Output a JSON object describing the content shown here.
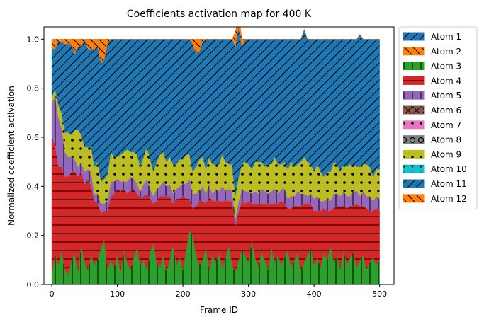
{
  "chart_data": {
    "type": "area",
    "title": "Coefficients activation map for 400 K",
    "xlabel": "Frame ID",
    "ylabel": "Normalized coefficient activation",
    "xlim": [
      -12,
      522
    ],
    "ylim": [
      0,
      1.05
    ],
    "xticks": [
      0,
      100,
      200,
      300,
      400,
      500
    ],
    "xtick_labels": [
      "0",
      "100",
      "200",
      "300",
      "400",
      "500"
    ],
    "yticks": [
      0.0,
      0.2,
      0.4,
      0.6,
      0.8,
      1.0
    ],
    "ytick_labels": [
      "0.0",
      "0.2",
      "0.4",
      "0.6",
      "0.8",
      "1.0"
    ],
    "grid": false,
    "legend_position": "outside-right-top",
    "x": [
      0,
      5,
      10,
      15,
      20,
      25,
      30,
      35,
      40,
      45,
      50,
      55,
      60,
      65,
      70,
      75,
      80,
      85,
      90,
      95,
      100,
      105,
      110,
      115,
      120,
      125,
      130,
      135,
      140,
      145,
      150,
      155,
      160,
      165,
      170,
      175,
      180,
      185,
      190,
      195,
      200,
      205,
      210,
      215,
      220,
      225,
      230,
      235,
      240,
      245,
      250,
      255,
      260,
      265,
      270,
      275,
      280,
      285,
      290,
      295,
      300,
      305,
      310,
      315,
      320,
      325,
      330,
      335,
      340,
      345,
      350,
      355,
      360,
      365,
      370,
      375,
      380,
      385,
      390,
      395,
      400,
      405,
      410,
      415,
      420,
      425,
      430,
      435,
      440,
      445,
      450,
      455,
      460,
      465,
      470,
      475,
      480,
      485,
      490,
      495,
      500
    ],
    "series": [
      {
        "name": "Atom 3",
        "color": "#2ca02c",
        "hatch": "|",
        "values": [
          0.05,
          0.12,
          0.08,
          0.14,
          0.06,
          0.04,
          0.1,
          0.13,
          0.05,
          0.16,
          0.09,
          0.06,
          0.12,
          0.08,
          0.1,
          0.15,
          0.18,
          0.06,
          0.1,
          0.07,
          0.12,
          0.05,
          0.14,
          0.09,
          0.06,
          0.11,
          0.15,
          0.08,
          0.1,
          0.06,
          0.13,
          0.17,
          0.09,
          0.07,
          0.12,
          0.05,
          0.1,
          0.16,
          0.08,
          0.11,
          0.06,
          0.14,
          0.22,
          0.2,
          0.12,
          0.08,
          0.1,
          0.15,
          0.06,
          0.12,
          0.09,
          0.13,
          0.07,
          0.11,
          0.16,
          0.08,
          0.05,
          0.1,
          0.14,
          0.12,
          0.09,
          0.18,
          0.11,
          0.07,
          0.13,
          0.1,
          0.06,
          0.15,
          0.09,
          0.12,
          0.08,
          0.11,
          0.14,
          0.07,
          0.1,
          0.13,
          0.06,
          0.09,
          0.12,
          0.15,
          0.08,
          0.11,
          0.07,
          0.13,
          0.1,
          0.16,
          0.09,
          0.12,
          0.06,
          0.14,
          0.08,
          0.11,
          0.13,
          0.07,
          0.1,
          0.12,
          0.06,
          0.09,
          0.11,
          0.08,
          0.1
        ]
      },
      {
        "name": "Atom 4",
        "color": "#d62728",
        "hatch": "-",
        "values": [
          0.55,
          0.45,
          0.4,
          0.34,
          0.38,
          0.4,
          0.36,
          0.33,
          0.39,
          0.3,
          0.32,
          0.37,
          0.28,
          0.26,
          0.23,
          0.14,
          0.12,
          0.24,
          0.26,
          0.3,
          0.27,
          0.33,
          0.25,
          0.28,
          0.32,
          0.28,
          0.22,
          0.27,
          0.26,
          0.31,
          0.22,
          0.16,
          0.25,
          0.29,
          0.24,
          0.31,
          0.26,
          0.17,
          0.27,
          0.24,
          0.3,
          0.21,
          0.13,
          0.11,
          0.2,
          0.26,
          0.24,
          0.18,
          0.3,
          0.22,
          0.25,
          0.21,
          0.27,
          0.23,
          0.18,
          0.26,
          0.19,
          0.2,
          0.2,
          0.21,
          0.25,
          0.15,
          0.22,
          0.26,
          0.2,
          0.23,
          0.27,
          0.18,
          0.24,
          0.21,
          0.26,
          0.22,
          0.17,
          0.24,
          0.22,
          0.19,
          0.26,
          0.24,
          0.21,
          0.18,
          0.22,
          0.19,
          0.23,
          0.18,
          0.2,
          0.14,
          0.22,
          0.2,
          0.26,
          0.18,
          0.23,
          0.21,
          0.19,
          0.26,
          0.22,
          0.2,
          0.25,
          0.21,
          0.19,
          0.23,
          0.2
        ]
      },
      {
        "name": "Atom 5",
        "color": "#9467bd",
        "hatch": "|",
        "values": [
          0.14,
          0.2,
          0.2,
          0.16,
          0.1,
          0.08,
          0.06,
          0.05,
          0.04,
          0.04,
          0.05,
          0.04,
          0.06,
          0.03,
          0.04,
          0.04,
          0.03,
          0.04,
          0.06,
          0.05,
          0.04,
          0.04,
          0.03,
          0.05,
          0.06,
          0.04,
          0.04,
          0.03,
          0.05,
          0.06,
          0.04,
          0.03,
          0.05,
          0.04,
          0.06,
          0.04,
          0.05,
          0.04,
          0.04,
          0.05,
          0.05,
          0.06,
          0.08,
          0.06,
          0.05,
          0.04,
          0.06,
          0.04,
          0.05,
          0.03,
          0.05,
          0.04,
          0.06,
          0.04,
          0.05,
          0.04,
          0.03,
          0.04,
          0.05,
          0.05,
          0.04,
          0.04,
          0.05,
          0.04,
          0.06,
          0.05,
          0.04,
          0.05,
          0.06,
          0.04,
          0.05,
          0.06,
          0.04,
          0.05,
          0.04,
          0.06,
          0.05,
          0.04,
          0.03,
          0.04,
          0.05,
          0.06,
          0.04,
          0.03,
          0.05,
          0.04,
          0.06,
          0.05,
          0.04,
          0.06,
          0.05,
          0.04,
          0.06,
          0.05,
          0.04,
          0.06,
          0.05,
          0.06,
          0.04,
          0.05,
          0.05
        ]
      },
      {
        "name": "Atom 9",
        "color": "#bcbd22",
        "hatch": ".",
        "values": [
          0.02,
          0.03,
          0.05,
          0.06,
          0.08,
          0.1,
          0.09,
          0.12,
          0.15,
          0.11,
          0.1,
          0.09,
          0.1,
          0.11,
          0.13,
          0.09,
          0.1,
          0.11,
          0.12,
          0.1,
          0.09,
          0.11,
          0.12,
          0.13,
          0.1,
          0.11,
          0.12,
          0.1,
          0.11,
          0.13,
          0.12,
          0.1,
          0.11,
          0.13,
          0.12,
          0.1,
          0.11,
          0.12,
          0.1,
          0.11,
          0.1,
          0.12,
          0.1,
          0.09,
          0.11,
          0.13,
          0.12,
          0.1,
          0.11,
          0.12,
          0.1,
          0.11,
          0.13,
          0.12,
          0.1,
          0.11,
          0.09,
          0.1,
          0.1,
          0.12,
          0.11,
          0.1,
          0.12,
          0.13,
          0.11,
          0.1,
          0.12,
          0.11,
          0.13,
          0.12,
          0.1,
          0.11,
          0.12,
          0.14,
          0.12,
          0.11,
          0.13,
          0.15,
          0.14,
          0.12,
          0.11,
          0.13,
          0.12,
          0.1,
          0.11,
          0.12,
          0.13,
          0.12,
          0.1,
          0.11,
          0.12,
          0.13,
          0.11,
          0.1,
          0.12,
          0.11,
          0.13,
          0.12,
          0.1,
          0.11,
          0.12
        ]
      },
      {
        "name": "Atom 11",
        "color": "#1f77b4",
        "hatch": "/",
        "values": [
          0.2,
          0.16,
          0.26,
          0.29,
          0.36,
          0.36,
          0.37,
          0.31,
          0.34,
          0.36,
          0.44,
          0.4,
          0.4,
          0.48,
          0.47,
          0.48,
          0.49,
          0.53,
          0.46,
          0.48,
          0.48,
          0.47,
          0.46,
          0.45,
          0.46,
          0.46,
          0.47,
          0.52,
          0.48,
          0.44,
          0.49,
          0.54,
          0.5,
          0.47,
          0.46,
          0.5,
          0.48,
          0.51,
          0.51,
          0.49,
          0.49,
          0.47,
          0.47,
          0.52,
          0.46,
          0.44,
          0.47,
          0.53,
          0.48,
          0.51,
          0.51,
          0.51,
          0.47,
          0.5,
          0.51,
          0.51,
          0.61,
          0.61,
          0.48,
          0.5,
          0.51,
          0.53,
          0.5,
          0.5,
          0.5,
          0.52,
          0.51,
          0.51,
          0.48,
          0.51,
          0.51,
          0.5,
          0.53,
          0.5,
          0.52,
          0.51,
          0.5,
          0.52,
          0.5,
          0.51,
          0.54,
          0.51,
          0.54,
          0.56,
          0.54,
          0.54,
          0.5,
          0.51,
          0.54,
          0.51,
          0.52,
          0.51,
          0.51,
          0.52,
          0.54,
          0.51,
          0.51,
          0.52,
          0.56,
          0.53,
          0.53
        ]
      },
      {
        "name": "Atom 12",
        "color": "#ff7f0e",
        "hatch": "\\",
        "values": [
          0.04,
          0.04,
          0.01,
          0.01,
          0.02,
          0.02,
          0.02,
          0.06,
          0.03,
          0.03,
          0.0,
          0.04,
          0.04,
          0.04,
          0.03,
          0.1,
          0.08,
          0.02,
          0.0,
          0.0,
          0.0,
          0.0,
          0.0,
          0.0,
          0.0,
          0.0,
          0.0,
          0.0,
          0.0,
          0.0,
          0.0,
          0.0,
          0.0,
          0.0,
          0.0,
          0.0,
          0.0,
          0.0,
          0.0,
          0.0,
          0.0,
          0.0,
          0.0,
          0.02,
          0.06,
          0.05,
          0.01,
          0.0,
          0.0,
          0.0,
          0.0,
          0.0,
          0.0,
          0.0,
          0.0,
          0.0,
          0.06,
          0.05,
          0.03,
          0.0,
          0.0,
          0.0,
          0.0,
          0.0,
          0.0,
          0.0,
          0.0,
          0.0,
          0.0,
          0.0,
          0.0,
          0.0,
          0.0,
          0.0,
          0.0,
          0.0,
          0.0,
          0.0,
          0.0,
          0.0,
          0.0,
          0.0,
          0.0,
          0.0,
          0.0,
          0.0,
          0.0,
          0.0,
          0.0,
          0.0,
          0.0,
          0.0,
          0.0,
          0.0,
          0.0,
          0.0,
          0.0,
          0.0,
          0.0,
          0.0,
          0.0
        ]
      }
    ],
    "legend": [
      {
        "label": "Atom 1",
        "color": "#1f77b4",
        "hatch": "/"
      },
      {
        "label": "Atom 2",
        "color": "#ff7f0e",
        "hatch": "\\"
      },
      {
        "label": "Atom 3",
        "color": "#2ca02c",
        "hatch": "|"
      },
      {
        "label": "Atom 4",
        "color": "#d62728",
        "hatch": "-"
      },
      {
        "label": "Atom 5",
        "color": "#9467bd",
        "hatch": "|"
      },
      {
        "label": "Atom 6",
        "color": "#8c564b",
        "hatch": "x"
      },
      {
        "label": "Atom 7",
        "color": "#e377c2",
        "hatch": "."
      },
      {
        "label": "Atom 8",
        "color": "#7f7f7f",
        "hatch": "o"
      },
      {
        "label": "Atom 9",
        "color": "#bcbd22",
        "hatch": "."
      },
      {
        "label": "Atom 10",
        "color": "#17becf",
        "hatch": "*"
      },
      {
        "label": "Atom 11",
        "color": "#1f77b4",
        "hatch": "/"
      },
      {
        "label": "Atom 12",
        "color": "#ff7f0e",
        "hatch": "\\"
      }
    ]
  }
}
